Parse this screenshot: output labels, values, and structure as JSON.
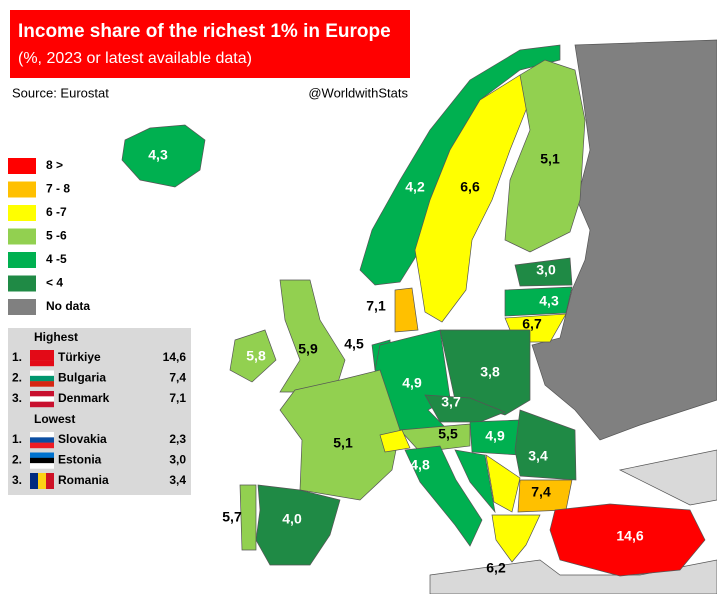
{
  "title": "Income share of the richest 1% in Europe",
  "subtitle": "(%, 2023 or latest available data)",
  "source": "Source: Eurostat",
  "credit": "@WorldwithStats",
  "legend": [
    {
      "label": "8 >",
      "color": "#ff0000"
    },
    {
      "label": "7 - 8",
      "color": "#ffc000"
    },
    {
      "label": "6 -7",
      "color": "#ffff00"
    },
    {
      "label": "5 -6",
      "color": "#92d050"
    },
    {
      "label": "4 -5",
      "color": "#00b050"
    },
    {
      "label": "< 4",
      "color": "#1f8a45"
    },
    {
      "label": "No data",
      "color": "#808080"
    }
  ],
  "rankings": {
    "highest": {
      "title": "Highest",
      "rows": [
        {
          "rank": "1.",
          "country": "Türkiye",
          "value": "14,6"
        },
        {
          "rank": "2.",
          "country": "Bulgaria",
          "value": "7,4"
        },
        {
          "rank": "3.",
          "country": "Denmark",
          "value": "7,1"
        }
      ]
    },
    "lowest": {
      "title": "Lowest",
      "rows": [
        {
          "rank": "1.",
          "country": "Slovakia",
          "value": "2,3"
        },
        {
          "rank": "2.",
          "country": "Estonia",
          "value": "3,0"
        },
        {
          "rank": "3.",
          "country": "Romania",
          "value": "3,4"
        }
      ]
    }
  },
  "regions": [
    {
      "label": "4,3",
      "color": "#00b050"
    },
    {
      "label": "4,2",
      "color": "#00b050"
    },
    {
      "label": "6,6",
      "color": "#ffff00"
    },
    {
      "label": "5,1",
      "color": "#92d050"
    },
    {
      "label": "3,0",
      "color": "#1f8a45"
    },
    {
      "label": "4,3",
      "color": "#00b050"
    },
    {
      "label": "6,7",
      "color": "#ffff00"
    },
    {
      "label": "7,1",
      "color": "#ffc000"
    },
    {
      "label": "5,8",
      "color": "#92d050"
    },
    {
      "label": "5,9",
      "color": "#92d050"
    },
    {
      "label": "4,5",
      "color": "#00b050"
    },
    {
      "label": "4,9",
      "color": "#00b050"
    },
    {
      "label": "3,8",
      "color": "#1f8a45"
    },
    {
      "label": "3,7",
      "color": "#1f8a45"
    },
    {
      "label": "5,1",
      "color": "#92d050"
    },
    {
      "label": "5,5",
      "color": "#92d050"
    },
    {
      "label": "4,9",
      "color": "#00b050"
    },
    {
      "label": "3,4",
      "color": "#1f8a45"
    },
    {
      "label": "4,8",
      "color": "#00b050"
    },
    {
      "label": "7,4",
      "color": "#ffc000"
    },
    {
      "label": "4,0",
      "color": "#1f8a45"
    },
    {
      "label": "5,7",
      "color": "#92d050"
    },
    {
      "label": "6,2",
      "color": "#ffff00"
    },
    {
      "label": "14,6",
      "color": "#ff0000"
    }
  ]
}
